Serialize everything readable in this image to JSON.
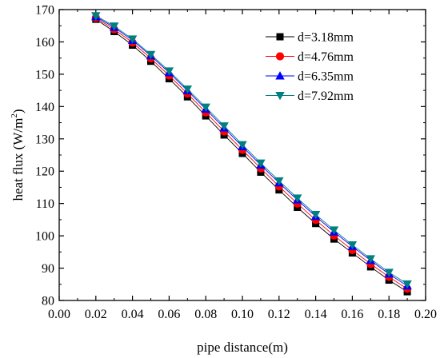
{
  "chart_data": {
    "type": "line",
    "title": "",
    "xlabel": "pipe distance(m)",
    "ylabel": "heat flux (W/m²)",
    "ylabel_parts": {
      "main": "heat flux (W/m",
      "sup": "2",
      "close": ")"
    },
    "xlim": [
      0.0,
      0.2
    ],
    "ylim": [
      80,
      170
    ],
    "x_ticks": [
      0.0,
      0.02,
      0.04,
      0.06,
      0.08,
      0.1,
      0.12,
      0.14,
      0.16,
      0.18,
      0.2
    ],
    "x_tick_labels": [
      "0.00",
      "0.02",
      "0.04",
      "0.06",
      "0.08",
      "0.10",
      "0.12",
      "0.14",
      "0.16",
      "0.18",
      "0.20"
    ],
    "y_ticks": [
      80,
      90,
      100,
      110,
      120,
      130,
      140,
      150,
      160,
      170
    ],
    "y_tick_labels": [
      "80",
      "90",
      "100",
      "110",
      "120",
      "130",
      "140",
      "150",
      "160",
      "170"
    ],
    "grid": false,
    "legend_position": "top-right",
    "x": [
      0.02,
      0.03,
      0.04,
      0.05,
      0.06,
      0.07,
      0.08,
      0.09,
      0.1,
      0.11,
      0.12,
      0.13,
      0.14,
      0.15,
      0.16,
      0.17,
      0.18,
      0.19
    ],
    "series": [
      {
        "name": "d=3.18mm",
        "color": "#000000",
        "marker": "square",
        "values": [
          167.0,
          163.2,
          159.0,
          154.0,
          148.6,
          143.0,
          137.1,
          131.2,
          125.5,
          119.7,
          114.2,
          108.8,
          103.8,
          99.0,
          94.7,
          90.4,
          86.3,
          82.7
        ]
      },
      {
        "name": "d=4.76mm",
        "color": "#ff0000",
        "marker": "circle",
        "values": [
          167.4,
          163.9,
          159.8,
          154.9,
          149.6,
          144.0,
          138.2,
          132.3,
          126.6,
          120.9,
          115.3,
          110.0,
          104.9,
          100.1,
          95.6,
          91.3,
          87.3,
          83.6
        ]
      },
      {
        "name": "d=6.35mm",
        "color": "#0000ff",
        "marker": "triangle",
        "values": [
          167.8,
          164.5,
          160.5,
          155.7,
          150.5,
          144.9,
          139.2,
          133.4,
          127.6,
          121.9,
          116.4,
          111.1,
          106.0,
          101.2,
          96.7,
          92.4,
          88.2,
          84.5
        ]
      },
      {
        "name": "d=7.92mm",
        "color": "#008080",
        "marker": "triangle-down",
        "values": [
          168.1,
          164.9,
          160.9,
          156.1,
          151.0,
          145.4,
          139.8,
          134.0,
          128.2,
          122.5,
          117.0,
          111.7,
          106.6,
          101.8,
          97.2,
          92.9,
          88.7,
          85.1
        ]
      }
    ]
  }
}
